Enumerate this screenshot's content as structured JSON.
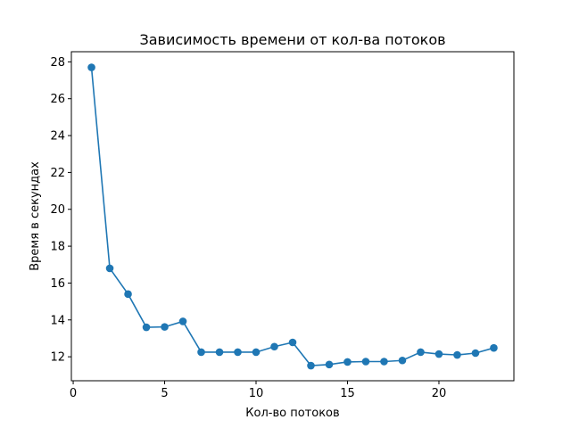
{
  "chart_data": {
    "type": "line",
    "title": "Зависимость времени от кол-ва потоков",
    "xlabel": "Кол-во потоков",
    "ylabel": "Время в секундах",
    "x": [
      1,
      2,
      3,
      4,
      5,
      6,
      7,
      8,
      9,
      10,
      11,
      12,
      13,
      14,
      15,
      16,
      17,
      18,
      19,
      20,
      21,
      22,
      23
    ],
    "series": [
      {
        "values": [
          27.7,
          16.8,
          15.4,
          13.6,
          13.62,
          13.92,
          12.25,
          12.25,
          12.25,
          12.25,
          12.55,
          12.78,
          11.52,
          11.58,
          11.72,
          11.74,
          11.74,
          11.8,
          12.25,
          12.15,
          12.1,
          12.2,
          12.48
        ],
        "color": "#1f77b4",
        "marker": "circle"
      }
    ],
    "xlim": [
      -0.1,
      24.1
    ],
    "ylim": [
      10.7,
      28.55
    ],
    "xticks": [
      0,
      5,
      10,
      15,
      20
    ],
    "yticks": [
      12,
      14,
      16,
      18,
      20,
      22,
      24,
      26,
      28
    ],
    "grid": false,
    "legend": false
  }
}
